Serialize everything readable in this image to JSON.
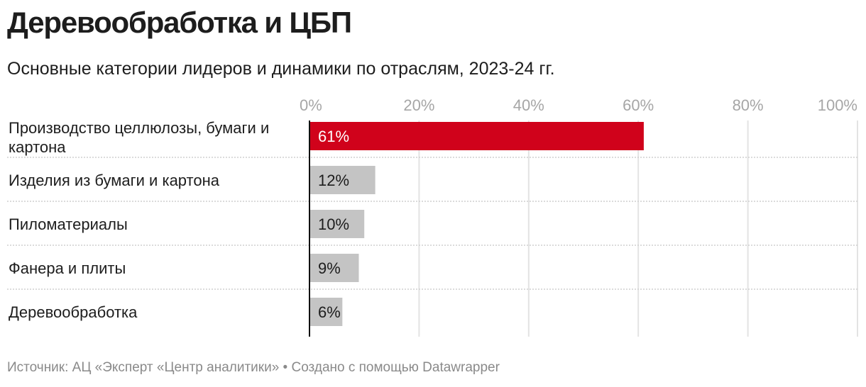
{
  "title": "Деревообработка и ЦБП",
  "subtitle": "Основные категории лидеров и динамики по отраслям, 2023-24 гг.",
  "footer": "Источник: АЦ «Эксперт «Центр аналитики» • Создано с помощью Datawrapper",
  "colors": {
    "highlight": "#d0021b",
    "bar": "#c4c4c4",
    "grid": "#e3e3e3",
    "separator": "#cfcfcf",
    "axis": "#111111",
    "tick_text": "#a6a6a6"
  },
  "chart_data": {
    "type": "bar",
    "orientation": "horizontal",
    "categories": [
      [
        "Производство целлюлозы, бумаги и",
        "картона"
      ],
      [
        "Изделия из бумаги и картона"
      ],
      [
        "Пиломатериалы"
      ],
      [
        "Фанера и плиты"
      ],
      [
        "Деревообработка"
      ]
    ],
    "values": [
      61,
      12,
      10,
      9,
      6
    ],
    "value_labels": [
      "61%",
      "12%",
      "10%",
      "9%",
      "6%"
    ],
    "highlight_index": 0,
    "xlim": [
      0,
      100
    ],
    "ticks": [
      0,
      20,
      40,
      60,
      80,
      100
    ],
    "tick_labels": [
      "0%",
      "20%",
      "40%",
      "60%",
      "80%",
      "100%"
    ],
    "grid": true
  }
}
